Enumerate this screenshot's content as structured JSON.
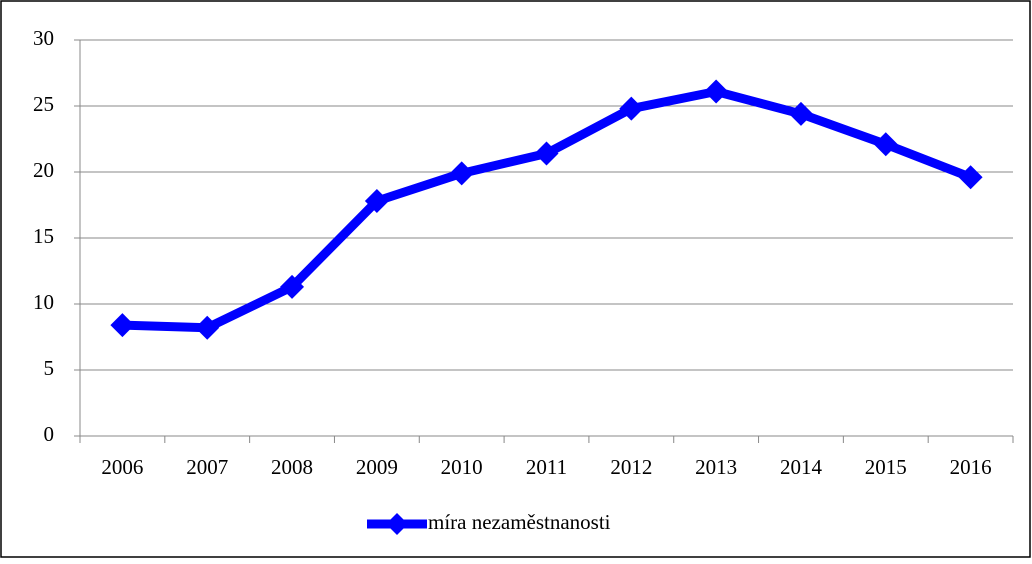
{
  "chart_data": {
    "type": "line",
    "categories": [
      "2006",
      "2007",
      "2008",
      "2009",
      "2010",
      "2011",
      "2012",
      "2013",
      "2014",
      "2015",
      "2016"
    ],
    "series": [
      {
        "name": "míra nezaměstnanosti",
        "color": "#0000ff",
        "values": [
          8.4,
          8.2,
          11.3,
          17.8,
          19.9,
          21.4,
          24.8,
          26.1,
          24.4,
          22.1,
          19.6
        ]
      }
    ],
    "ylim": [
      0,
      30
    ],
    "yticks": [
      0,
      5,
      10,
      15,
      20,
      25,
      30
    ],
    "grid": true,
    "legend": "bottom"
  }
}
